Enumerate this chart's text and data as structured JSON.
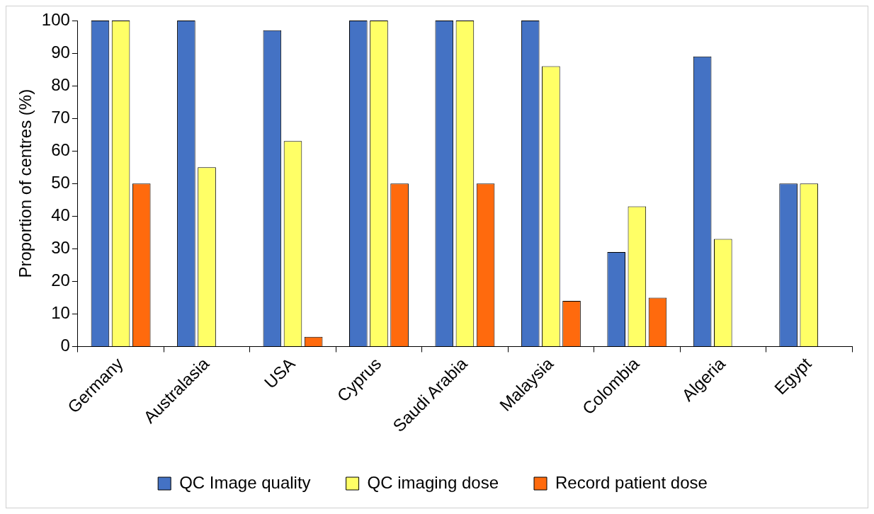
{
  "chart_data": {
    "type": "bar",
    "ylabel": "Proportion of centres (%)",
    "categories": [
      "Germany",
      "Australasia",
      "USA",
      "Cyprus",
      "Saudi Arabia",
      "Malaysia",
      "Colombia",
      "Algeria",
      "Egypt"
    ],
    "series": [
      {
        "name": "QC Image quality",
        "color": "#4472c4",
        "values": [
          100,
          100,
          97,
          100,
          100,
          100,
          29,
          89,
          50
        ]
      },
      {
        "name": "QC imaging dose",
        "color": "#ffff66",
        "values": [
          100,
          55,
          63,
          100,
          100,
          86,
          43,
          33,
          50
        ]
      },
      {
        "name": "Record patient dose",
        "color": "#ff6a0d",
        "values": [
          50,
          null,
          3,
          50,
          50,
          14,
          15,
          null,
          null
        ]
      }
    ],
    "ylim": [
      0,
      100
    ],
    "yticks": [
      0,
      10,
      20,
      30,
      40,
      50,
      60,
      70,
      80,
      90,
      100
    ],
    "grid": false,
    "legend": "bottom"
  }
}
